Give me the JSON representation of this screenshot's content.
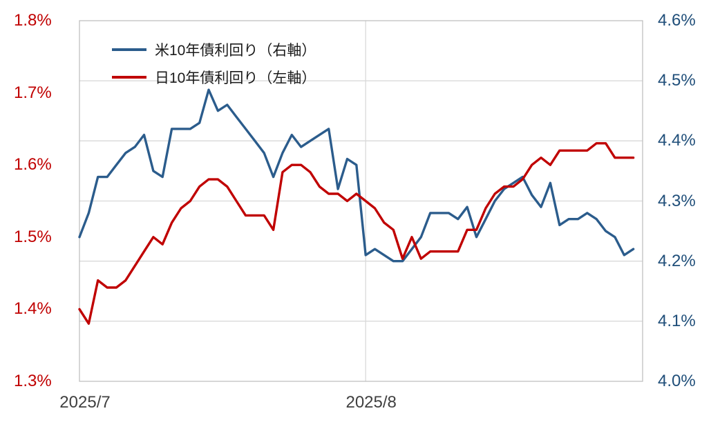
{
  "chart_data": {
    "type": "line",
    "title": "",
    "x_axis": {
      "tick_labels": [
        "2025/7",
        "2025/8"
      ],
      "tick_day_indices": [
        0,
        31
      ],
      "day_slots": 61
    },
    "left_axis": {
      "min": 1.3,
      "max": 1.8,
      "tick_step": 0.1,
      "tick_values": [
        1.8,
        1.7,
        1.6,
        1.5,
        1.4,
        1.3
      ],
      "tick_labels": [
        "1.8%",
        "1.7%",
        "1.6%",
        "1.5%",
        "1.4%",
        "1.3%"
      ],
      "label_color": "#C00000"
    },
    "right_axis": {
      "min": 4.0,
      "max": 4.6,
      "tick_step": 0.1,
      "tick_values": [
        4.6,
        4.5,
        4.4,
        4.3,
        4.2,
        4.1,
        4.0
      ],
      "tick_labels": [
        "4.6%",
        "4.5%",
        "4.4%",
        "4.3%",
        "4.2%",
        "4.1%",
        "4.0%"
      ],
      "label_color": "#1F4E79"
    },
    "grid": {
      "horizontal": "right-axis 0.1 steps",
      "vertical": "month starts",
      "gridline_color": "#D9D9D9",
      "border_color": "#BFBFBF"
    },
    "legend_position": "top-left-inside",
    "series": [
      {
        "name": "米10年債利回り（右軸）",
        "axis": "right",
        "color": "#2B5C8C",
        "values": [
          4.24,
          4.28,
          4.34,
          4.34,
          4.36,
          4.38,
          4.39,
          4.41,
          4.35,
          4.34,
          4.42,
          4.42,
          4.42,
          4.43,
          4.485,
          4.45,
          4.46,
          4.44,
          4.42,
          4.4,
          4.38,
          4.34,
          4.38,
          4.41,
          4.39,
          4.4,
          4.41,
          4.42,
          4.32,
          4.37,
          4.36,
          4.21,
          4.22,
          4.21,
          4.2,
          4.2,
          4.22,
          4.24,
          4.28,
          4.28,
          4.28,
          4.27,
          4.29,
          4.24,
          4.27,
          4.3,
          4.32,
          4.33,
          4.34,
          4.31,
          4.29,
          4.33,
          4.26,
          4.27,
          4.27,
          4.28,
          4.27,
          4.25,
          4.24,
          4.21,
          4.22
        ]
      },
      {
        "name": "日10年債利回り（左軸）",
        "axis": "left",
        "color": "#C00000",
        "values": [
          1.4,
          1.38,
          1.44,
          1.43,
          1.43,
          1.44,
          1.46,
          1.48,
          1.5,
          1.49,
          1.52,
          1.54,
          1.55,
          1.57,
          1.58,
          1.58,
          1.57,
          1.55,
          1.53,
          1.53,
          1.53,
          1.51,
          1.59,
          1.6,
          1.6,
          1.59,
          1.57,
          1.56,
          1.56,
          1.55,
          1.56,
          1.55,
          1.54,
          1.52,
          1.51,
          1.47,
          1.5,
          1.47,
          1.48,
          1.48,
          1.48,
          1.48,
          1.51,
          1.51,
          1.54,
          1.56,
          1.57,
          1.57,
          1.58,
          1.6,
          1.61,
          1.6,
          1.62,
          1.62,
          1.62,
          1.62,
          1.63,
          1.63,
          1.61,
          1.61,
          1.61
        ]
      }
    ]
  }
}
